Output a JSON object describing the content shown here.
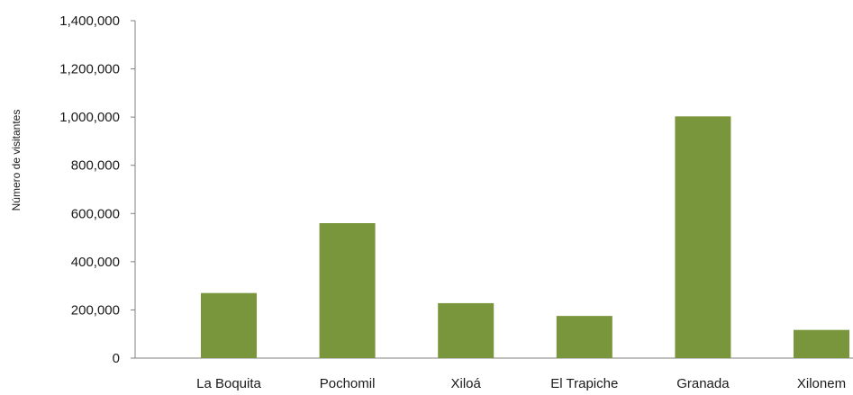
{
  "chart_data": {
    "type": "bar",
    "title": "",
    "xlabel": "",
    "ylabel": "Número de visitantes",
    "categories": [
      "La Boquita",
      "Pochomil",
      "Xiloá",
      "El Trapiche",
      "Granada",
      "Xilonem"
    ],
    "values": [
      270000,
      560000,
      228000,
      175000,
      1003000,
      117000
    ],
    "ylim": [
      0,
      1400000
    ],
    "yticks": [
      0,
      200000,
      400000,
      600000,
      800000,
      1000000,
      1200000,
      1400000
    ],
    "ytick_labels": [
      "0",
      "200,000",
      "400,000",
      "600,000",
      "800,000",
      "1,000,000",
      "1,200,000",
      "1,400,000"
    ],
    "grid": false,
    "legend": "none",
    "colors": {
      "bar": "#7a963c",
      "axis": "#808080",
      "text": "#1a1a1a"
    }
  }
}
